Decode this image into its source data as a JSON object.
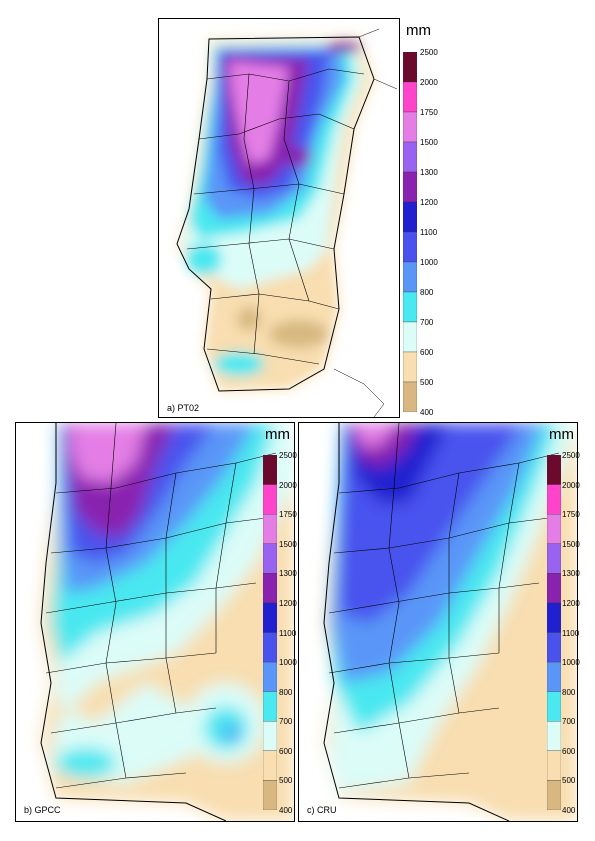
{
  "panels": {
    "a": {
      "label": "a) PT02",
      "unit": "mm"
    },
    "b": {
      "label": "b) GPCC",
      "unit": "mm"
    },
    "c": {
      "label": "c) CRU",
      "unit": "mm"
    }
  },
  "colorbar": {
    "levels": [
      "2500",
      "2000",
      "1750",
      "1500",
      "1300",
      "1200",
      "1100",
      "1000",
      "800",
      "700",
      "600",
      "500",
      "400"
    ],
    "colors": [
      "#6b0a2c",
      "#ff44cc",
      "#e47ee6",
      "#9a62f0",
      "#8a22b0",
      "#2020d0",
      "#4a52ee",
      "#5a96f8",
      "#4ae8f0",
      "#dcfcf8",
      "#f8deb0",
      "#d8b880"
    ]
  }
}
